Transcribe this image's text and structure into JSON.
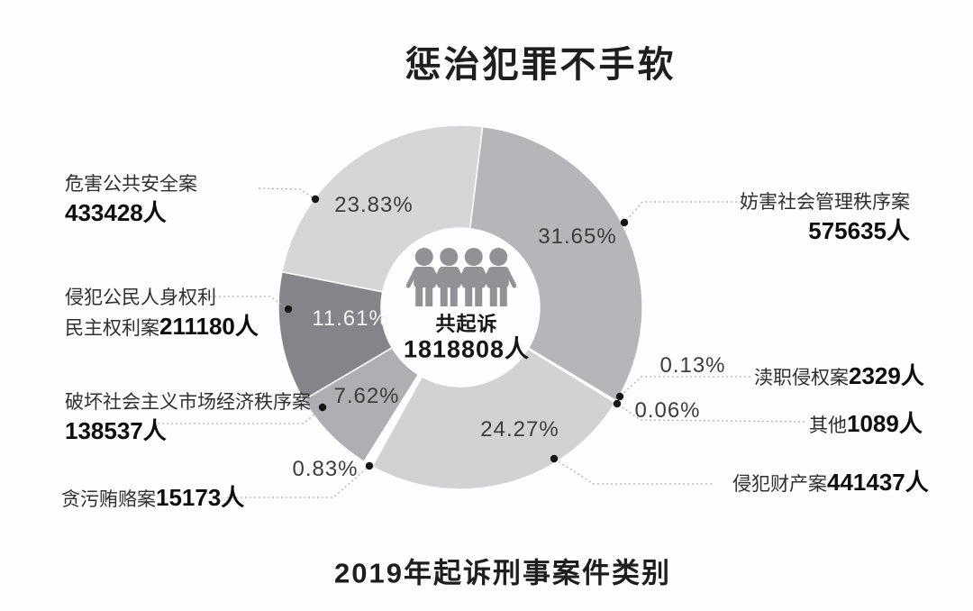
{
  "title": "惩治犯罪不手软",
  "footer_title": "2019年起诉刑事案件类别",
  "center": {
    "label": "共起诉",
    "value_label": "1818808人",
    "people_icon_count": 4,
    "people_icon_color": "#919196"
  },
  "chart_data": {
    "type": "pie",
    "donut": true,
    "title": "惩治犯罪不手软",
    "subtitle": "2019年起诉刑事案件类别",
    "unit": "人",
    "total": {
      "label": "共起诉",
      "value": 1818808,
      "value_label": "1818808人"
    },
    "start_angle_deg": 7,
    "clockwise": true,
    "legend_position": "callout-labels",
    "segments": [
      {
        "name": "妨害社会管理秩序案",
        "value": 575635,
        "value_label": "575635人",
        "percent": 31.65,
        "percent_label": "31.65%",
        "color": "#b5b5ba"
      },
      {
        "name": "渎职侵权案",
        "value": 2329,
        "value_label": "2329人",
        "percent": 0.13,
        "percent_label": "0.13%",
        "color": "#5e5e66"
      },
      {
        "name": "其他",
        "value": 1089,
        "value_label": "1089人",
        "percent": 0.06,
        "percent_label": "0.06%",
        "color": "#88888e"
      },
      {
        "name": "侵犯财产案",
        "value": 441437,
        "value_label": "441437人",
        "percent": 24.27,
        "percent_label": "24.27%",
        "color": "#d2d2d5"
      },
      {
        "name": "贪污贿赂案",
        "value": 15173,
        "value_label": "15173人",
        "percent": 0.83,
        "percent_label": "0.83%",
        "color": "#6e6e75"
      },
      {
        "name": "破坏社会主义市场经济秩序案",
        "value": 138537,
        "value_label": "138537人",
        "percent": 7.62,
        "percent_label": "7.62%",
        "color": "#aeaeb3"
      },
      {
        "name": "侵犯公民人身权利民主权利案",
        "name_line1": "侵犯公民人身权利",
        "name_line2": "民主权利案",
        "value": 211180,
        "value_label": "211180人",
        "percent": 11.61,
        "percent_label": "11.61%",
        "color": "#84848a"
      },
      {
        "name": "危害公共安全案",
        "value": 433428,
        "value_label": "433428人",
        "percent": 23.83,
        "percent_label": "23.83%",
        "color": "#d6d6d9"
      }
    ]
  }
}
